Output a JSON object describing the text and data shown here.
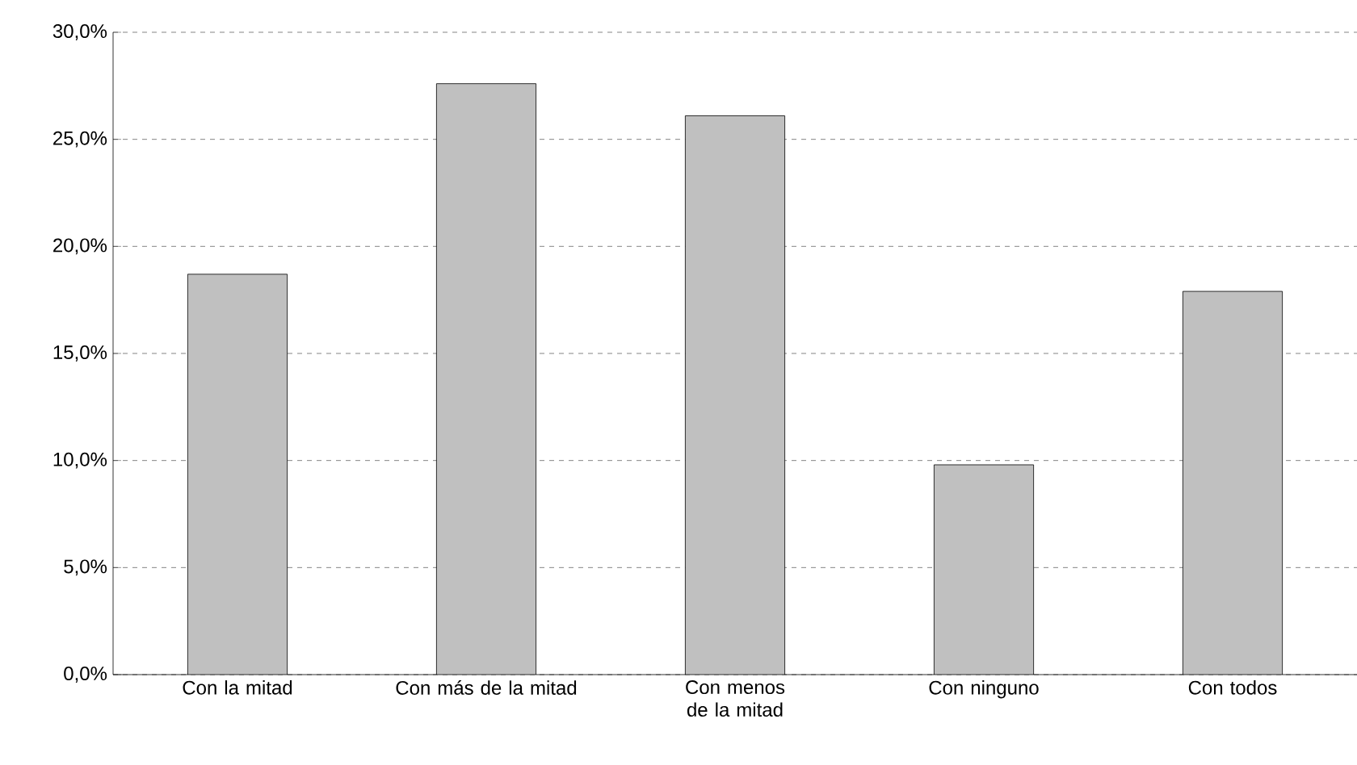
{
  "chart_data": {
    "type": "bar",
    "categories": [
      "Con la mitad",
      "Con más de la mitad",
      "Con menos de la mitad",
      "Con ninguno",
      "Con todos"
    ],
    "values": [
      18.7,
      27.6,
      26.1,
      9.8,
      17.9
    ],
    "color": "#c0c0c0",
    "ylim": [
      0,
      30
    ],
    "yticks": [
      {
        "value": 0,
        "label": "0,0%"
      },
      {
        "value": 5,
        "label": "5,0%"
      },
      {
        "value": 10,
        "label": "10,0%"
      },
      {
        "value": 15,
        "label": "15,0%"
      },
      {
        "value": 20,
        "label": "20,0%"
      },
      {
        "value": 25,
        "label": "25,0%"
      },
      {
        "value": 30,
        "label": "30,0%"
      }
    ],
    "grid": "y"
  }
}
